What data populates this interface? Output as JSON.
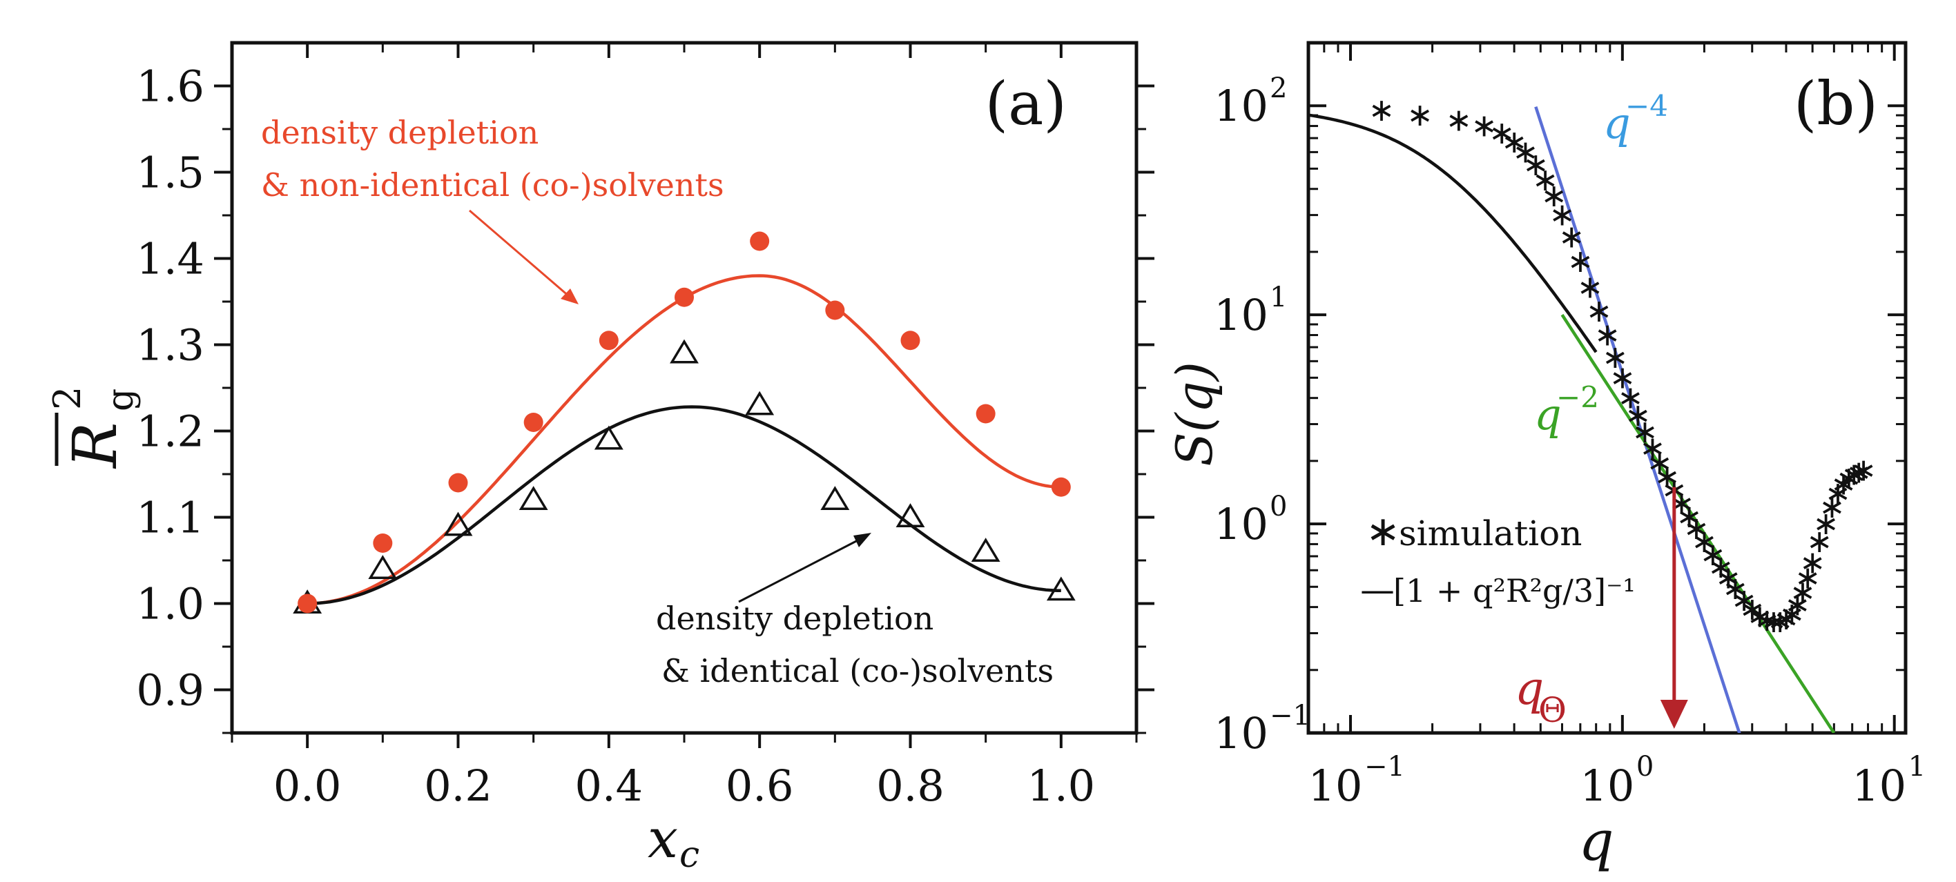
{
  "chart_data": [
    {
      "type": "scatter",
      "panel_label": "(a)",
      "xlabel": "x",
      "xlabel_sub": "c",
      "ylabel": "R",
      "ylabel_sub": "g",
      "ylabel_sup": "2",
      "xlim": [
        -0.1,
        1.1
      ],
      "ylim": [
        0.85,
        1.65
      ],
      "xticks": [
        "0.0",
        "0.2",
        "0.4",
        "0.6",
        "0.8",
        "1.0"
      ],
      "yticks": [
        "0.9",
        "1.0",
        "1.1",
        "1.2",
        "1.3",
        "1.4",
        "1.5",
        "1.6"
      ],
      "colors": {
        "red": "#e8482b",
        "black": "#111111"
      },
      "series": [
        {
          "name": "density depletion & non-identical (co-)solvents",
          "marker": "filled-circle",
          "x": [
            0.0,
            0.1,
            0.2,
            0.3,
            0.4,
            0.5,
            0.6,
            0.7,
            0.8,
            0.9,
            1.0
          ],
          "y": [
            1.0,
            1.07,
            1.14,
            1.21,
            1.305,
            1.355,
            1.42,
            1.34,
            1.305,
            1.22,
            1.135
          ],
          "fit": {
            "amplitude": 0.38,
            "peak_x": 0.6,
            "end_y": 1.135
          }
        },
        {
          "name": "density depletion & identical (co-)solvents",
          "marker": "open-triangle",
          "x": [
            0.0,
            0.1,
            0.2,
            0.3,
            0.4,
            0.5,
            0.6,
            0.7,
            0.8,
            0.9,
            1.0
          ],
          "y": [
            1.0,
            1.04,
            1.09,
            1.12,
            1.19,
            1.29,
            1.23,
            1.12,
            1.1,
            1.06,
            1.015
          ],
          "fit": {
            "amplitude": 0.228,
            "peak_x": 0.51,
            "end_y": 1.015
          }
        }
      ],
      "annotations": [
        {
          "lines": [
            "density depletion",
            "& non-identical (co-)solvents"
          ],
          "color": "#e8482b"
        },
        {
          "lines": [
            "density depletion",
            "& identical (co-)solvents"
          ],
          "color": "#111111"
        }
      ]
    },
    {
      "type": "line",
      "panel_label": "(b)",
      "xscale": "log",
      "yscale": "log",
      "xlabel": "q",
      "ylabel": "S(q)",
      "xlim": [
        0.07,
        11
      ],
      "ylim": [
        0.1,
        200
      ],
      "xticks": [
        {
          "base": "10",
          "exp": "−1",
          "value": 0.1
        },
        {
          "base": "10",
          "exp": "0",
          "value": 1
        },
        {
          "base": "10",
          "exp": "1",
          "value": 10
        }
      ],
      "yticks": [
        {
          "base": "10",
          "exp": "−1",
          "value": 0.1
        },
        {
          "base": "10",
          "exp": "0",
          "value": 1
        },
        {
          "base": "10",
          "exp": "1",
          "value": 10
        },
        {
          "base": "10",
          "exp": "2",
          "value": 100
        }
      ],
      "simulation": {
        "q": [
          0.13,
          0.18,
          0.25,
          0.31,
          0.36,
          0.4,
          0.44,
          0.48,
          0.52,
          0.56,
          0.6,
          0.65,
          0.7,
          0.76,
          0.82,
          0.88,
          0.94,
          1.0,
          1.07,
          1.14,
          1.21,
          1.29,
          1.37,
          1.46,
          1.55,
          1.65,
          1.76,
          1.87,
          2.0,
          2.15,
          2.3,
          2.45,
          2.6,
          2.8,
          3.0,
          3.2,
          3.4,
          3.6,
          3.8,
          4.0,
          4.2,
          4.4,
          4.6,
          4.8,
          5.0,
          5.3,
          5.6,
          5.9,
          6.2,
          6.5,
          6.8,
          7.1,
          7.4,
          7.7
        ],
        "S": [
          95,
          90,
          85,
          80,
          74,
          67,
          60,
          52,
          44,
          37,
          30,
          23.5,
          18,
          13.5,
          10.4,
          8.0,
          6.25,
          5.0,
          4.0,
          3.3,
          2.75,
          2.3,
          1.95,
          1.68,
          1.45,
          1.25,
          1.08,
          0.95,
          0.82,
          0.71,
          0.62,
          0.55,
          0.49,
          0.43,
          0.39,
          0.36,
          0.345,
          0.34,
          0.34,
          0.35,
          0.37,
          0.41,
          0.47,
          0.55,
          0.65,
          0.82,
          1.0,
          1.2,
          1.4,
          1.55,
          1.65,
          1.72,
          1.76,
          1.8
        ]
      },
      "ornstein_zernike": {
        "label": "[1 + q²R²g/3]⁻¹",
        "prefactor": 100,
        "Rg2_over_3": 2.2,
        "q_range": [
          0.07,
          0.8
        ]
      },
      "power_laws": [
        {
          "label": "q",
          "exponent_label": "−4",
          "exponent": -4,
          "S_at_q1": 5.25,
          "q_range": [
            0.48,
            3.15
          ],
          "color": "#5b6fd6",
          "label_color": "#3a9be0"
        },
        {
          "label": "q",
          "exponent_label": "−2",
          "exponent": -2,
          "S_at_q1": 3.6,
          "q_range": [
            0.6,
            6.0
          ],
          "color": "#3aa325",
          "label_color": "#3aa325"
        }
      ],
      "q_theta": {
        "label": "q",
        "sub": "Θ",
        "q": 1.55,
        "from_S": 1.5,
        "color": "#b5242a"
      },
      "legend": {
        "position": "lower-left",
        "entries": [
          {
            "symbol": "∗",
            "label": "simulation"
          },
          {
            "symbol": "—",
            "label": "[1 + q²R²g/3]⁻¹"
          }
        ]
      }
    }
  ]
}
